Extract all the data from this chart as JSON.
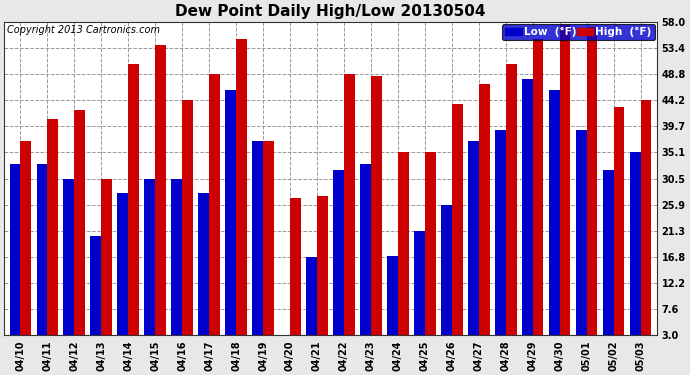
{
  "title": "Dew Point Daily High/Low 20130504",
  "copyright": "Copyright 2013 Cartronics.com",
  "dates": [
    "04/10",
    "04/11",
    "04/12",
    "04/13",
    "04/14",
    "04/15",
    "04/16",
    "04/17",
    "04/18",
    "04/19",
    "04/20",
    "04/21",
    "04/22",
    "04/23",
    "04/24",
    "04/25",
    "04/26",
    "04/27",
    "04/28",
    "04/29",
    "04/30",
    "05/01",
    "05/02",
    "05/03"
  ],
  "low_values": [
    33.0,
    33.0,
    30.5,
    20.5,
    28.0,
    30.5,
    30.5,
    28.0,
    46.0,
    37.0,
    3.0,
    16.8,
    32.0,
    33.0,
    17.0,
    21.3,
    25.9,
    37.0,
    39.0,
    48.0,
    46.0,
    39.0,
    32.0,
    35.1
  ],
  "high_values": [
    37.0,
    41.0,
    42.5,
    30.5,
    50.5,
    54.0,
    44.2,
    48.8,
    55.0,
    37.0,
    27.0,
    27.5,
    48.8,
    48.5,
    35.1,
    35.1,
    43.5,
    47.0,
    50.5,
    55.0,
    57.5,
    57.0,
    43.0,
    44.2
  ],
  "y_ticks": [
    3.0,
    7.6,
    12.2,
    16.8,
    21.3,
    25.9,
    30.5,
    35.1,
    39.7,
    44.2,
    48.8,
    53.4,
    58.0
  ],
  "ylim_min": 3.0,
  "ylim_max": 58.0,
  "bar_color_low": "#0000cc",
  "bar_color_high": "#cc0000",
  "plot_bg_color": "#ffffff",
  "fig_bg_color": "#e8e8e8",
  "grid_color": "#999999",
  "legend_low_label": "Low  (°F)",
  "legend_high_label": "High  (°F)",
  "title_fontsize": 11,
  "copyright_fontsize": 7,
  "tick_fontsize": 7,
  "bar_width": 0.4
}
